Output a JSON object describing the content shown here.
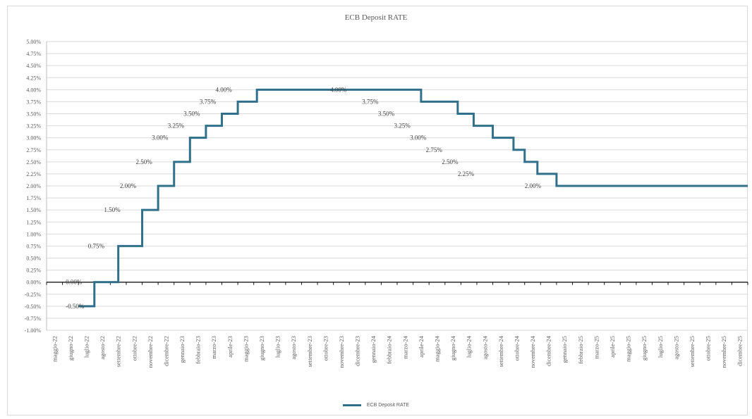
{
  "chart_data": {
    "type": "line",
    "step": true,
    "title": "ECB Deposit RATE",
    "xlabel": "",
    "ylabel": "",
    "ylim": [
      -0.01,
      0.05
    ],
    "ytick_step": 0.0025,
    "grid": true,
    "legend_position": "bottom",
    "categories": [
      "maggio-22",
      "giugno-22",
      "luglio-22",
      "agosto-22",
      "settembre-22",
      "ottobre-22",
      "novembre-22",
      "dicembre-22",
      "gennaio-23",
      "febbraio-23",
      "marzo-23",
      "aprile-23",
      "maggio-23",
      "giugno-23",
      "luglio-23",
      "agosto-23",
      "settembre-23",
      "ottobre-23",
      "novembre-23",
      "dicembre-23",
      "gennaio-24",
      "febbraio-24",
      "marzo-24",
      "aprile-24",
      "maggio-24",
      "giugno-24",
      "luglio-24",
      "agosto-24",
      "settembre-24",
      "ottobre-24",
      "novembre-24",
      "dicembre-24",
      "gennaio-25",
      "febbraio-25",
      "marzo-25",
      "aprile-25",
      "maggio-25",
      "giugno-25",
      "luglio-25",
      "agosto-25",
      "settembre-25",
      "ottobre-25",
      "novembre-25",
      "dicembre-25"
    ],
    "series": [
      {
        "name": "ECB Deposit RATE",
        "color": "#31708a",
        "steps": [
          {
            "x": 2.0,
            "value": -0.005
          },
          {
            "x": 3.0,
            "value": 0.0
          },
          {
            "x": 4.5,
            "value": 0.0075
          },
          {
            "x": 6.0,
            "value": 0.015
          },
          {
            "x": 7.0,
            "value": 0.02
          },
          {
            "x": 8.0,
            "value": 0.025
          },
          {
            "x": 9.0,
            "value": 0.03
          },
          {
            "x": 10.0,
            "value": 0.0325
          },
          {
            "x": 11.0,
            "value": 0.035
          },
          {
            "x": 12.0,
            "value": 0.0375
          },
          {
            "x": 13.2,
            "value": 0.04
          },
          {
            "x": 23.5,
            "value": 0.0375
          },
          {
            "x": 25.8,
            "value": 0.035
          },
          {
            "x": 26.8,
            "value": 0.0325
          },
          {
            "x": 28.0,
            "value": 0.03
          },
          {
            "x": 29.3,
            "value": 0.0275
          },
          {
            "x": 30.0,
            "value": 0.025
          },
          {
            "x": 30.8,
            "value": 0.0225
          },
          {
            "x": 32.0,
            "value": 0.02
          },
          {
            "x": 40.0,
            "value": 0.02
          }
        ]
      }
    ],
    "data_labels": [
      {
        "x": 1.2,
        "value": -0.005,
        "text": "-0.50%"
      },
      {
        "x": 1.2,
        "value": 0.0,
        "text": "0.00%"
      },
      {
        "x": 2.6,
        "value": 0.0075,
        "text": "0.75%"
      },
      {
        "x": 3.6,
        "value": 0.015,
        "text": "1.50%"
      },
      {
        "x": 4.6,
        "value": 0.02,
        "text": "2.00%"
      },
      {
        "x": 5.6,
        "value": 0.025,
        "text": "2.50%"
      },
      {
        "x": 6.6,
        "value": 0.03,
        "text": "3.00%"
      },
      {
        "x": 7.6,
        "value": 0.0325,
        "text": "3.25%"
      },
      {
        "x": 8.6,
        "value": 0.035,
        "text": "3.50%"
      },
      {
        "x": 9.6,
        "value": 0.0375,
        "text": "3.75%"
      },
      {
        "x": 10.6,
        "value": 0.04,
        "text": "4.00%"
      },
      {
        "x": 17.8,
        "value": 0.04,
        "text": "4.00%"
      },
      {
        "x": 19.8,
        "value": 0.0375,
        "text": "3.75%"
      },
      {
        "x": 20.8,
        "value": 0.035,
        "text": "3.50%"
      },
      {
        "x": 21.8,
        "value": 0.0325,
        "text": "3.25%"
      },
      {
        "x": 22.8,
        "value": 0.03,
        "text": "3.00%"
      },
      {
        "x": 23.8,
        "value": 0.0275,
        "text": "2.75%"
      },
      {
        "x": 24.8,
        "value": 0.025,
        "text": "2.50%"
      },
      {
        "x": 25.8,
        "value": 0.0225,
        "text": "2.25%"
      },
      {
        "x": 30.0,
        "value": 0.02,
        "text": "2.00%"
      }
    ]
  }
}
